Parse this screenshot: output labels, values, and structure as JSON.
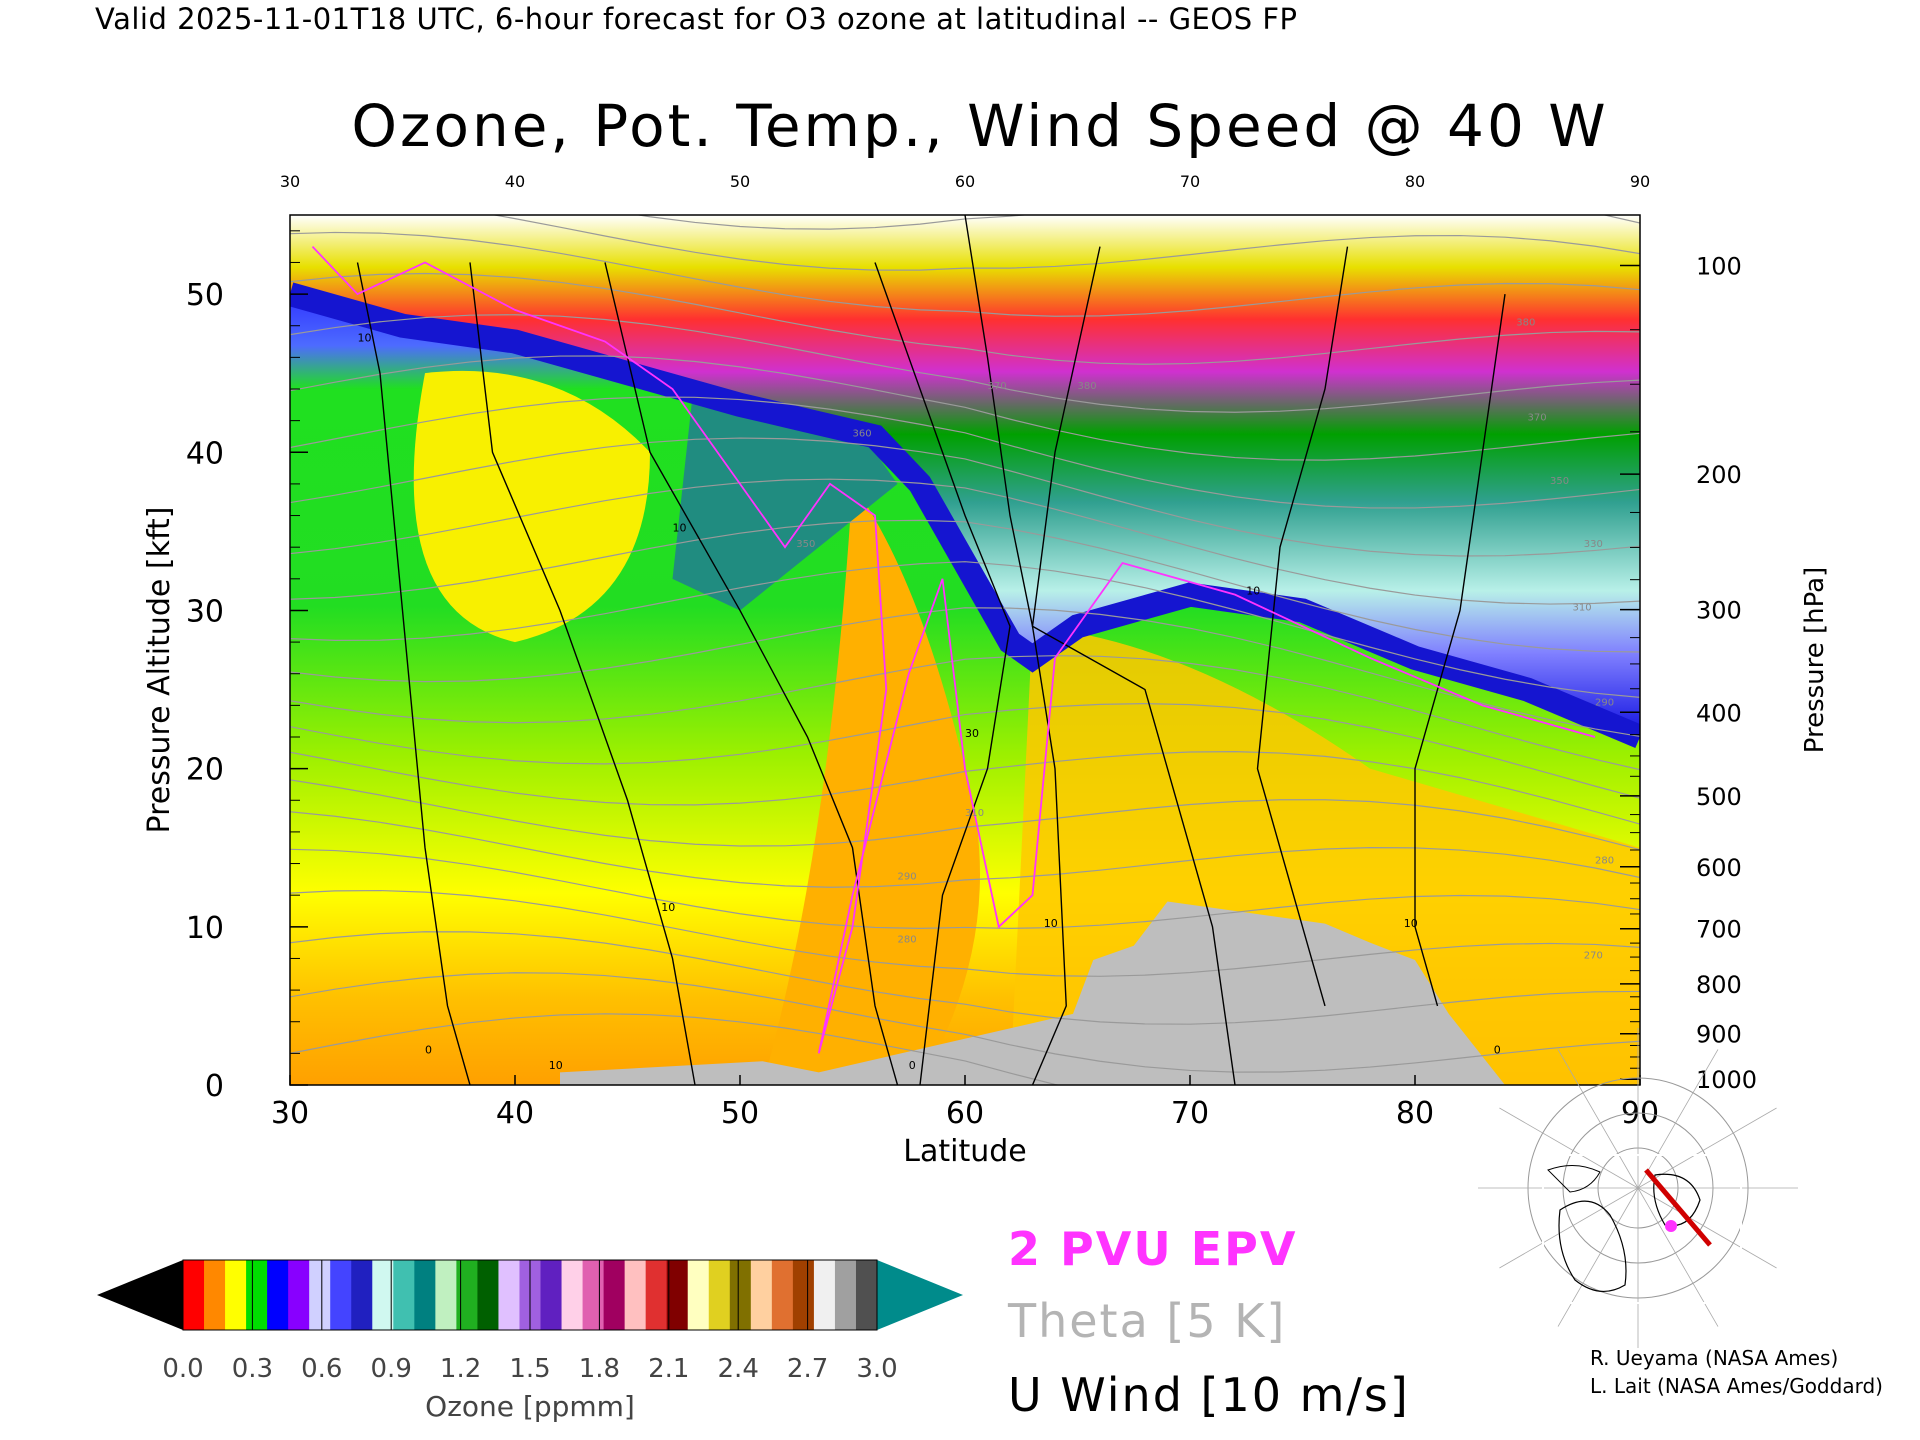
{
  "header": "Valid 2025-11-01T18 UTC, 6-hour forecast for O3 ozone at latitudinal -- GEOS FP",
  "chart_data": {
    "type": "heatmap",
    "title": "Ozone, Pot. Temp., Wind Speed @ 40 W",
    "xlabel": "Latitude",
    "ylabel": "Pressure Altitude [kft]",
    "y2label": "Pressure [hPa]",
    "xlim": [
      30,
      90
    ],
    "ylim": [
      0,
      55
    ],
    "x_ticks": [
      30,
      40,
      50,
      60,
      70,
      80,
      90
    ],
    "y_ticks": [
      0,
      10,
      20,
      30,
      40,
      50
    ],
    "pressure_ticks": [
      1000,
      900,
      800,
      700,
      600,
      500,
      400,
      300,
      200,
      100
    ],
    "tropopause_kft": [
      [
        30,
        50
      ],
      [
        35,
        48
      ],
      [
        40,
        47
      ],
      [
        45,
        45
      ],
      [
        50,
        43
      ],
      [
        53,
        42
      ],
      [
        56,
        41
      ],
      [
        58,
        38
      ],
      [
        60,
        33
      ],
      [
        62,
        28
      ],
      [
        63,
        27
      ],
      [
        65,
        29
      ],
      [
        70,
        31
      ],
      [
        75,
        30
      ],
      [
        80,
        27
      ],
      [
        85,
        25
      ],
      [
        90,
        22
      ]
    ],
    "surface_mask": [
      [
        42,
        0.8
      ],
      [
        51,
        1.5
      ],
      [
        53.5,
        0.8
      ],
      [
        64.8,
        4.5
      ],
      [
        65.7,
        7.9
      ],
      [
        67.5,
        8.8
      ],
      [
        69,
        11.6
      ],
      [
        76,
        10.2
      ],
      [
        78,
        9.0
      ],
      [
        80,
        7.9
      ],
      [
        81.5,
        4.5
      ],
      [
        84,
        0
      ]
    ],
    "series": [
      {
        "name": "2 PVU EPV",
        "color": "#ff33ff"
      },
      {
        "name": "Theta [5 K]",
        "color": "#b4b4b4"
      },
      {
        "name": "U Wind [10 m/s]",
        "color": "#000000"
      }
    ],
    "theta_labels": [
      {
        "x": 61,
        "y": 44,
        "text": "370"
      },
      {
        "x": 65,
        "y": 44,
        "text": "380"
      },
      {
        "x": 55,
        "y": 41,
        "text": "360"
      },
      {
        "x": 52.5,
        "y": 34,
        "text": "350"
      },
      {
        "x": 84.5,
        "y": 48,
        "text": "380"
      },
      {
        "x": 85,
        "y": 42,
        "text": "370"
      },
      {
        "x": 86,
        "y": 38,
        "text": "350"
      },
      {
        "x": 87.5,
        "y": 34,
        "text": "330"
      },
      {
        "x": 87,
        "y": 30,
        "text": "310"
      },
      {
        "x": 88,
        "y": 24,
        "text": "290"
      },
      {
        "x": 88,
        "y": 14,
        "text": "280"
      },
      {
        "x": 87.5,
        "y": 8,
        "text": "270"
      },
      {
        "x": 60,
        "y": 17,
        "text": "310"
      },
      {
        "x": 57,
        "y": 13,
        "text": "290"
      },
      {
        "x": 57,
        "y": 9,
        "text": "280"
      }
    ],
    "wind_labels": [
      {
        "x": 33,
        "y": 47,
        "text": "10"
      },
      {
        "x": 47,
        "y": 35,
        "text": "10"
      },
      {
        "x": 60,
        "y": 22,
        "text": "30"
      },
      {
        "x": 46.5,
        "y": 11,
        "text": "10"
      },
      {
        "x": 36,
        "y": 2,
        "text": "0"
      },
      {
        "x": 41.5,
        "y": 1,
        "text": "10"
      },
      {
        "x": 57.5,
        "y": 1,
        "text": "0"
      },
      {
        "x": 63.5,
        "y": 10,
        "text": "10"
      },
      {
        "x": 72.5,
        "y": 31,
        "text": "10"
      },
      {
        "x": 79.5,
        "y": 10,
        "text": "10"
      },
      {
        "x": 83.5,
        "y": 2,
        "text": "0"
      }
    ]
  },
  "colorbar": {
    "label": "Ozone [ppmm]",
    "ticks": [
      "0.0",
      "0.3",
      "0.6",
      "0.9",
      "1.2",
      "1.5",
      "1.8",
      "2.1",
      "2.4",
      "2.7",
      "3.0"
    ],
    "under_color": "#000000",
    "over_color": "#008b8b"
  },
  "legend": {
    "pvu": "2 PVU EPV",
    "theta": "Theta [5 K]",
    "uwind": "U Wind [10 m/s]"
  },
  "credits": {
    "line1": "R. Ueyama (NASA Ames)",
    "line2": "L. Lait (NASA Ames/Goddard)"
  }
}
